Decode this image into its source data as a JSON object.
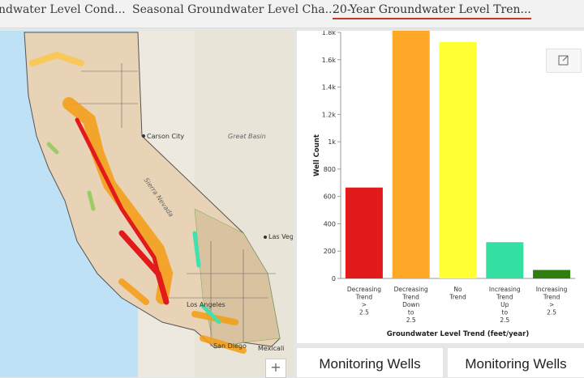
{
  "tabs": [
    {
      "label": "ndwater Level Cond..."
    },
    {
      "label": "Seasonal Groundwater Level Cha..."
    },
    {
      "label": "20-Year Groundwater Level Tren..."
    }
  ],
  "map": {
    "labels": {
      "carson_city": "Carson City",
      "great_basin": "Great Basin",
      "sierra_nevada": "Sierra Nevada",
      "las_vegas": "Las Vegas",
      "los_angeles": "Los Angeles",
      "san_diego": "San Diego",
      "mexicali": "Mexicali"
    },
    "zoom_in_label": "+"
  },
  "chart_data": {
    "type": "bar",
    "categories": [
      "Decreasing Trend > 2.5",
      "Decreasing Trend Down to 2.5",
      "No Trend",
      "Increasing Trend Up to 2.5",
      "Increasing Trend > 2.5"
    ],
    "category_lines": [
      [
        "Decreasing",
        "Trend",
        ">",
        "2.5"
      ],
      [
        "Decreasing",
        "Trend",
        "Down",
        "to",
        "2.5"
      ],
      [
        "No",
        "Trend"
      ],
      [
        "Increasing",
        "Trend",
        "Up",
        "to",
        "2.5"
      ],
      [
        "Increasing",
        "Trend",
        ">",
        "2.5"
      ]
    ],
    "values": [
      665,
      1830,
      1730,
      265,
      62
    ],
    "colors": [
      "#e31a1c",
      "#ffa726",
      "#ffff33",
      "#33e0a1",
      "#2e7d0f"
    ],
    "xlabel": "Groundwater Level Trend (feet/year)",
    "ylabel": "Well Count",
    "ylim": [
      0,
      1800
    ],
    "yticks": [
      0,
      200,
      400,
      600,
      800,
      1000,
      1200,
      1400,
      1600,
      1800
    ],
    "ytick_labels": [
      "0",
      "200",
      "400",
      "600",
      "800",
      "1k",
      "1.2k",
      "1.4k",
      "1.6k",
      "1.8k"
    ],
    "grid": false
  },
  "cards": [
    {
      "title": "Monitoring Wells"
    },
    {
      "title": "Monitoring Wells"
    }
  ]
}
